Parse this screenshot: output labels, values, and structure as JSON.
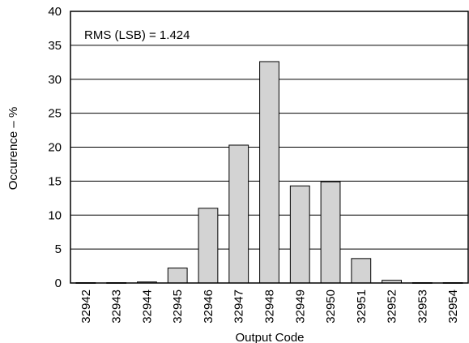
{
  "chart_data": {
    "type": "bar",
    "xlabel": "Output Code",
    "ylabel": "Occurence – %",
    "annotation": "RMS (LSB) = 1.424",
    "ylim": [
      0,
      40
    ],
    "yticks": [
      0,
      5,
      10,
      15,
      20,
      25,
      30,
      35,
      40
    ],
    "grid": true,
    "categories": [
      "32942",
      "32943",
      "32944",
      "32945",
      "32946",
      "32947",
      "32948",
      "32949",
      "32950",
      "32951",
      "32952",
      "32953",
      "32954"
    ],
    "values": [
      0.05,
      0.05,
      0.15,
      2.2,
      11.0,
      20.3,
      32.6,
      14.3,
      14.9,
      3.6,
      0.4,
      0.05,
      0.05
    ],
    "bar_color": "#d3d3d3"
  }
}
